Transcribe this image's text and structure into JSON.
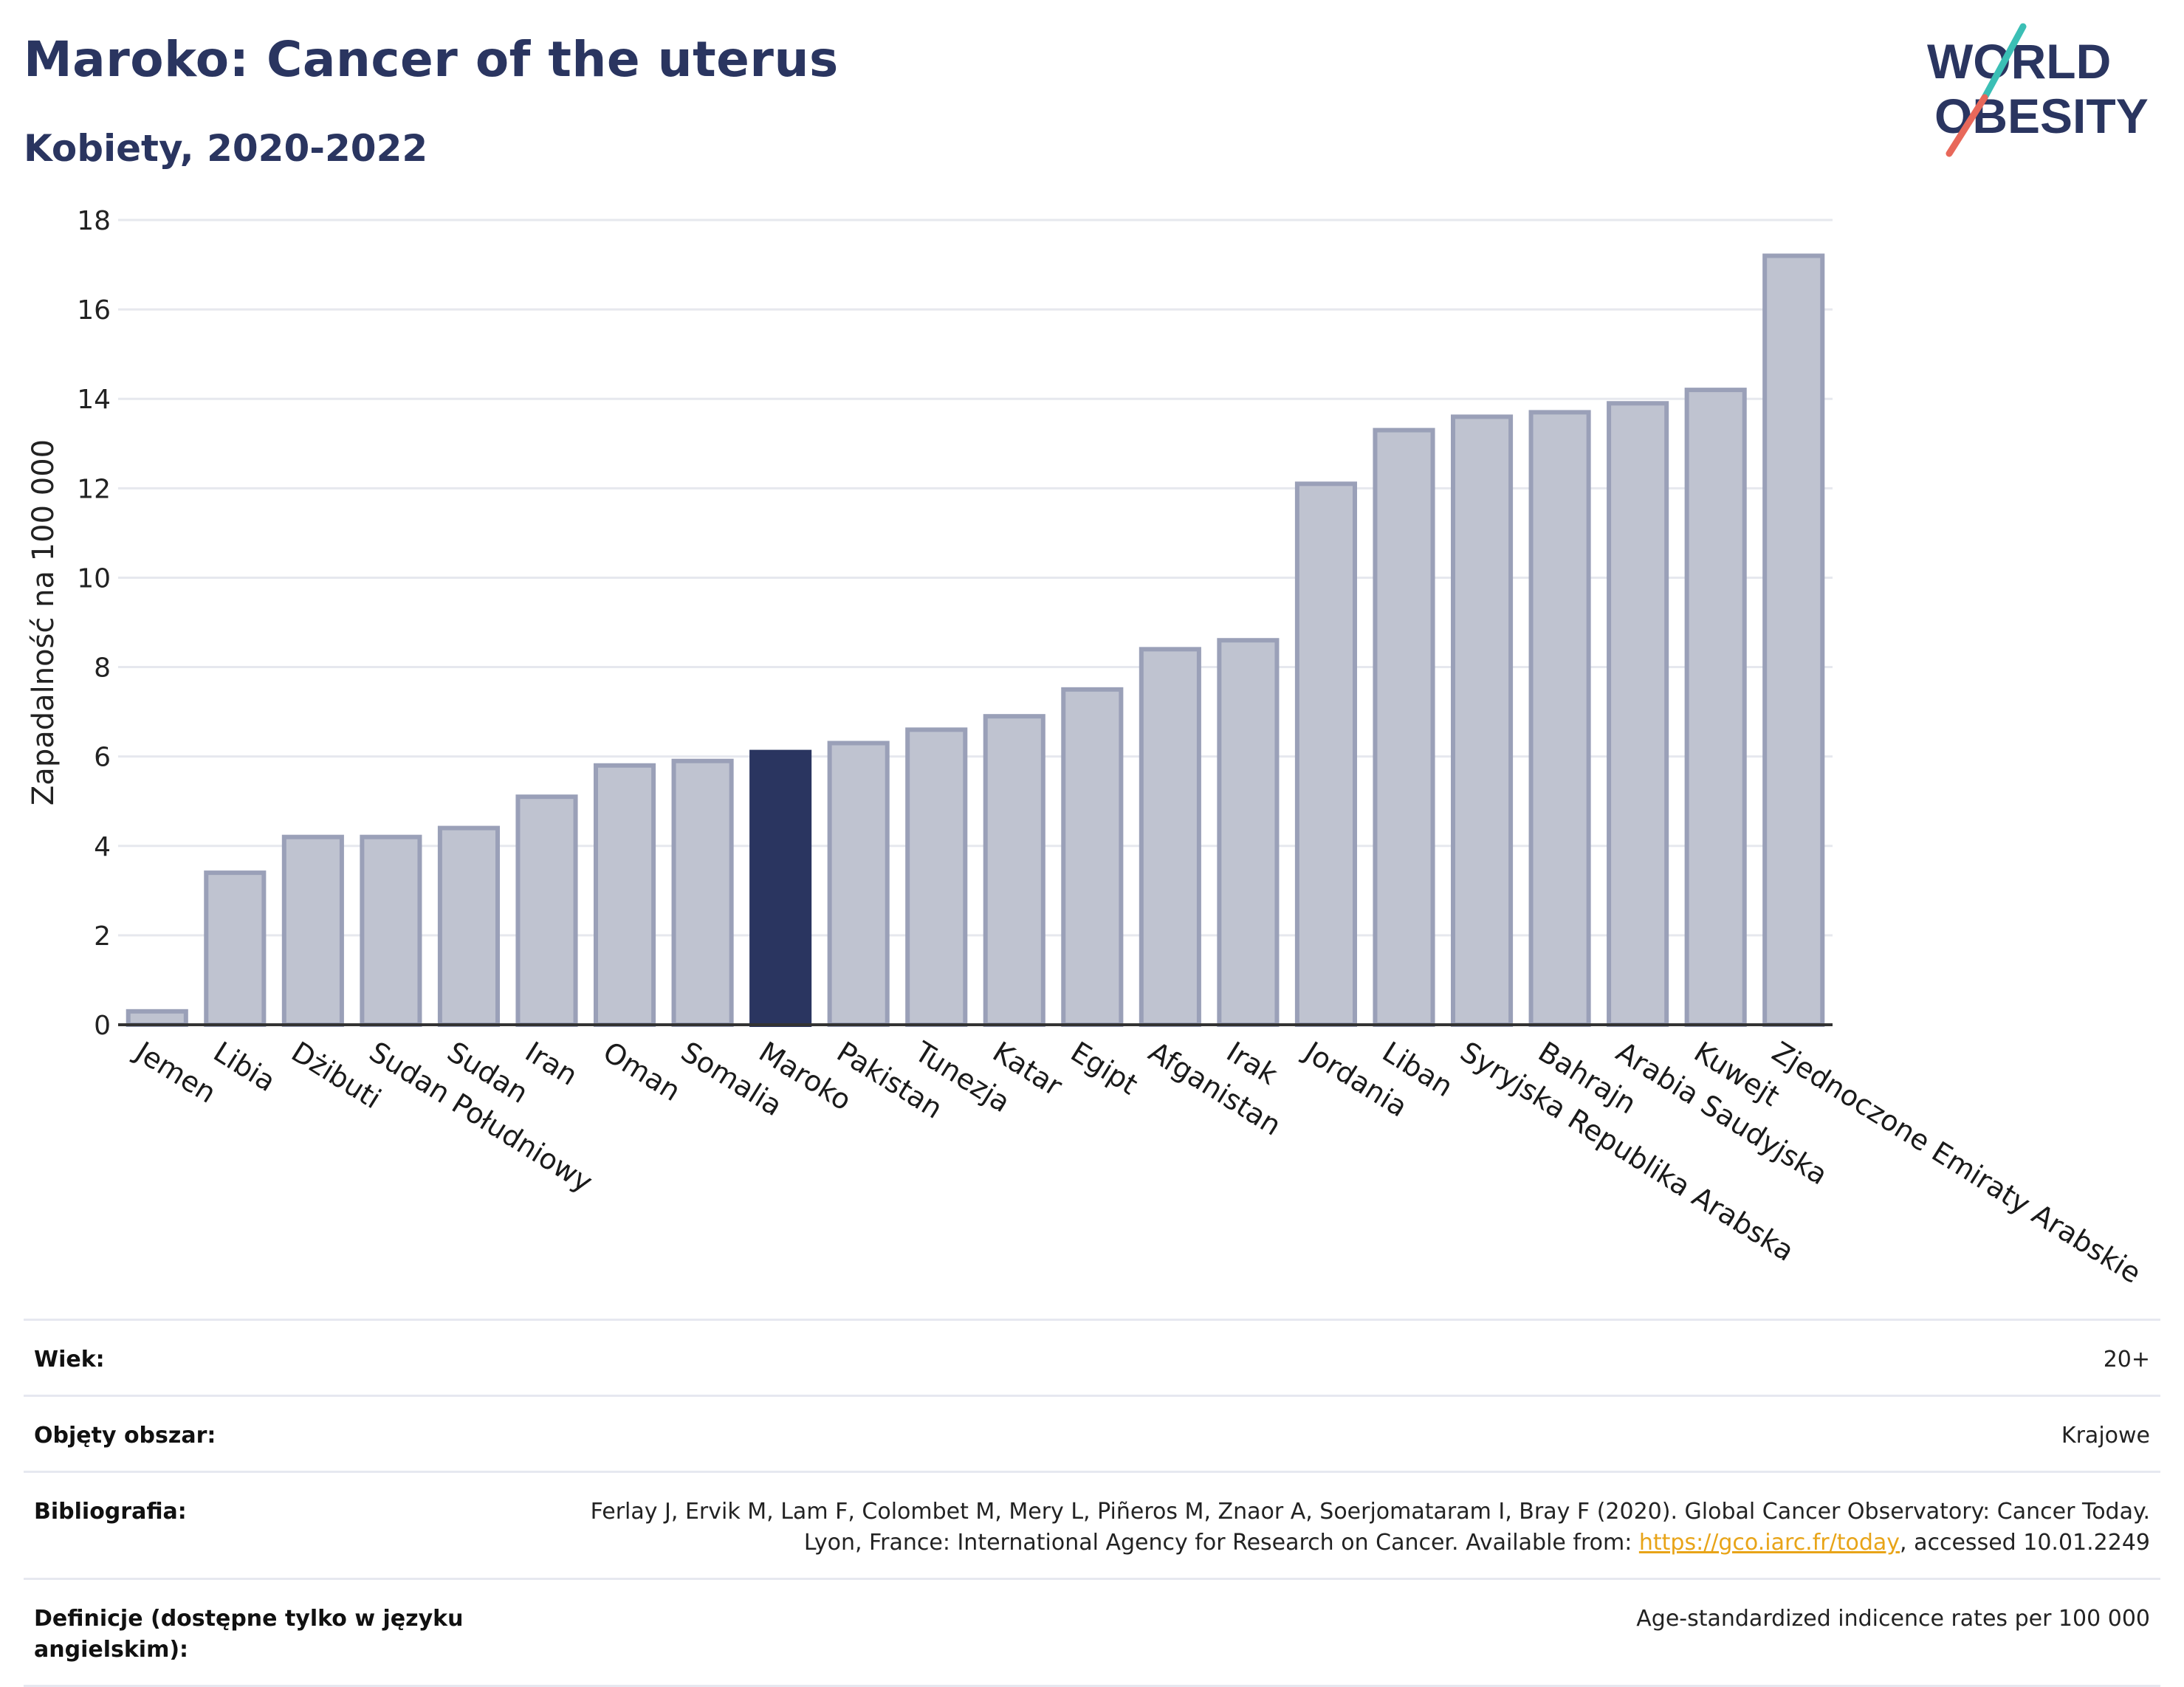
{
  "header": {
    "title": "Maroko: Cancer of the uterus",
    "subtitle": "Kobiety, 2020-2022"
  },
  "logo": {
    "line1": "WORLD",
    "line2": "OBESITY",
    "accent_teal": "#3bbfb5",
    "accent_coral": "#e8685a",
    "text_color": "#2a3560"
  },
  "chart_data": {
    "type": "bar",
    "ylabel": "Zapadalność na 100 000",
    "ylim": [
      0,
      18
    ],
    "yticks": [
      0,
      2,
      4,
      6,
      8,
      10,
      12,
      14,
      16,
      18
    ],
    "grid": true,
    "highlight": "Maroko",
    "colors": {
      "bar": "#bfc3d0",
      "bar_stroke": "#9aa0b8",
      "highlight": "#2a3560",
      "grid": "#e6e8ee",
      "axis": "#333333"
    },
    "categories": [
      "Jemen",
      "Libia",
      "Dżibuti",
      "Sudan Południowy",
      "Sudan",
      "Iran",
      "Oman",
      "Somalia",
      "Maroko",
      "Pakistan",
      "Tunezja",
      "Katar",
      "Egipt",
      "Afganistan",
      "Irak",
      "Jordania",
      "Liban",
      "Syryjska Republika Arabska",
      "Bahrajn",
      "Arabia Saudyjska",
      "Kuwejt",
      "Zjednoczone Emiraty Arabskie"
    ],
    "values": [
      0.3,
      3.4,
      4.2,
      4.2,
      4.4,
      5.1,
      5.8,
      5.9,
      6.1,
      6.3,
      6.6,
      6.9,
      7.5,
      8.4,
      8.6,
      12.1,
      13.3,
      13.6,
      13.7,
      13.9,
      14.2,
      17.2
    ]
  },
  "meta": {
    "rows": [
      {
        "label": "Wiek:",
        "value": "20+"
      },
      {
        "label": "Objęty obszar:",
        "value": "Krajowe"
      },
      {
        "label": "Bibliografia:",
        "value_before": "Ferlay J, Ervik M, Lam F, Colombet M, Mery L, Piñeros M, Znaor A, Soerjomataram I, Bray F (2020). Global Cancer Observatory: Cancer Today. Lyon, France: International Agency for Research on Cancer. Available from: ",
        "link": "https://gco.iarc.fr/today",
        "value_after": ", accessed 10.01.2249"
      },
      {
        "label": "Definicje (dostępne tylko w języku angielskim):",
        "value": "Age-standardized indicence rates per 100 000"
      }
    ]
  }
}
